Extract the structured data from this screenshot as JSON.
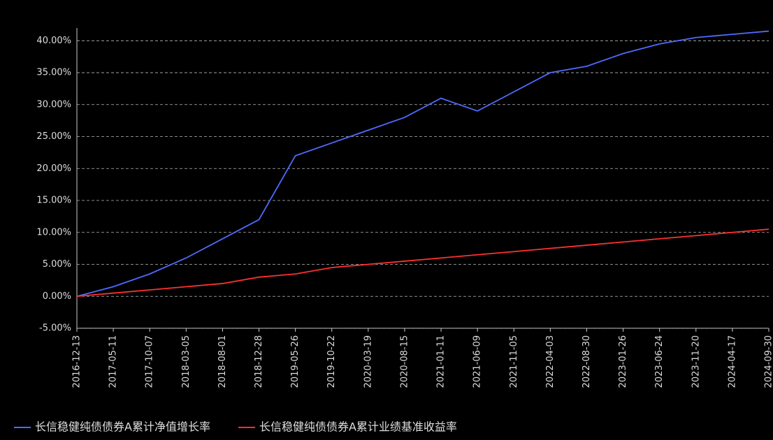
{
  "chart_data": {
    "type": "line",
    "categories": [
      "2016-12-13",
      "2017-05-11",
      "2017-10-07",
      "2018-03-05",
      "2018-08-01",
      "2018-12-28",
      "2019-05-26",
      "2019-10-22",
      "2020-03-19",
      "2020-08-15",
      "2021-01-11",
      "2021-06-09",
      "2021-11-05",
      "2022-04-03",
      "2022-08-30",
      "2023-01-26",
      "2023-06-24",
      "2023-11-20",
      "2024-04-17",
      "2024-09-30"
    ],
    "series": [
      {
        "name": "长信稳健纯债债券A累计净值增长率",
        "color": "#4f6bff",
        "values": [
          0,
          1.5,
          3.5,
          6,
          9,
          12,
          22,
          24,
          26,
          28,
          31,
          29,
          32,
          35,
          36,
          38,
          39.5,
          40.5,
          41,
          41.5
        ]
      },
      {
        "name": "长信稳健纯债债券A累计业绩基准收益率",
        "color": "#ff3030",
        "values": [
          0,
          0.5,
          1,
          1.5,
          2,
          3,
          3.5,
          4.5,
          5,
          5.5,
          6,
          6.5,
          7,
          7.5,
          8,
          8.5,
          9,
          9.5,
          10,
          10.5
        ]
      }
    ],
    "ylim": [
      -5,
      42
    ],
    "yticks": [
      {
        "value": -5,
        "label": "-5.00%"
      },
      {
        "value": 0,
        "label": "0.00%"
      },
      {
        "value": 5,
        "label": "5.00%"
      },
      {
        "value": 10,
        "label": "10.00%"
      },
      {
        "value": 15,
        "label": "15.00%"
      },
      {
        "value": 20,
        "label": "20.00%"
      },
      {
        "value": 25,
        "label": "25.00%"
      },
      {
        "value": 30,
        "label": "30.00%"
      },
      {
        "value": 35,
        "label": "35.00%"
      },
      {
        "value": 40,
        "label": "40.00%"
      }
    ],
    "grid": true
  }
}
